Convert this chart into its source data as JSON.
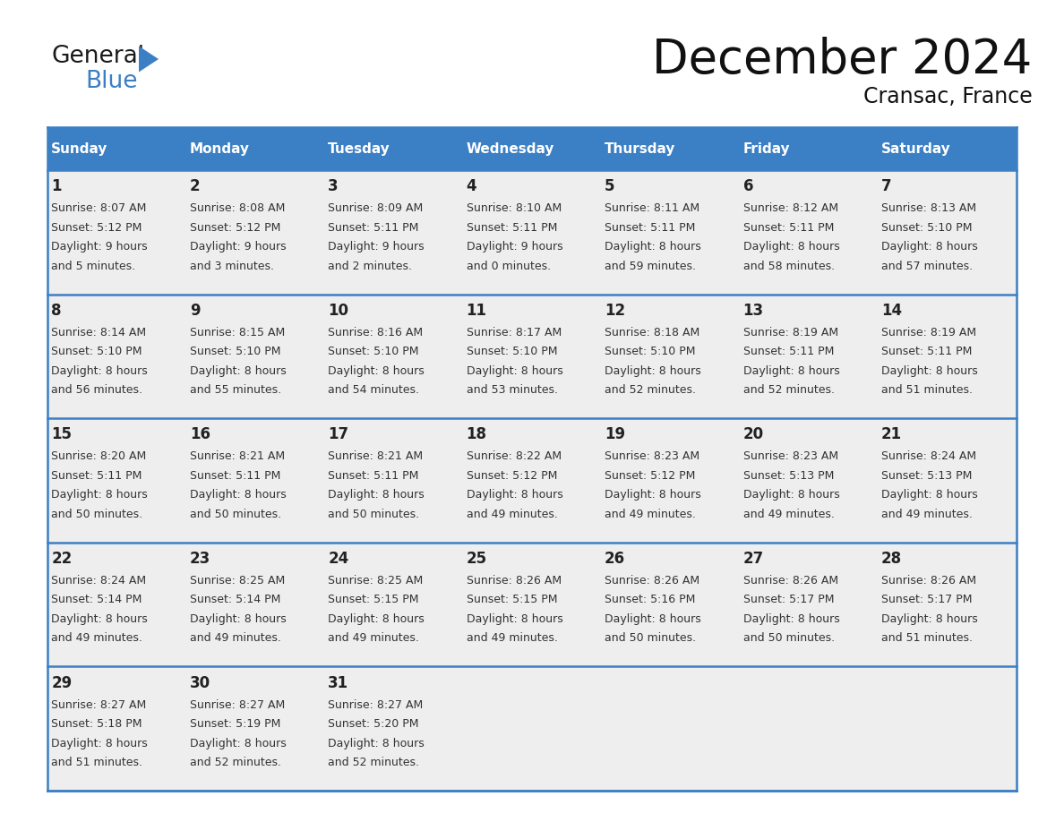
{
  "title": "December 2024",
  "subtitle": "Cransac, France",
  "header_bg_color": "#3b7fc4",
  "header_text_color": "#ffffff",
  "day_names": [
    "Sunday",
    "Monday",
    "Tuesday",
    "Wednesday",
    "Thursday",
    "Friday",
    "Saturday"
  ],
  "cell_bg_color": "#eeeeee",
  "border_color": "#3b7fc4",
  "title_color": "#111111",
  "subtitle_color": "#111111",
  "day_num_color": "#222222",
  "cell_text_color": "#333333",
  "calendar_data": [
    [
      {
        "day": "1",
        "sunrise": "8:07 AM",
        "sunset": "5:12 PM",
        "dl1": "9 hours",
        "dl2": "and 5 minutes."
      },
      {
        "day": "2",
        "sunrise": "8:08 AM",
        "sunset": "5:12 PM",
        "dl1": "9 hours",
        "dl2": "and 3 minutes."
      },
      {
        "day": "3",
        "sunrise": "8:09 AM",
        "sunset": "5:11 PM",
        "dl1": "9 hours",
        "dl2": "and 2 minutes."
      },
      {
        "day": "4",
        "sunrise": "8:10 AM",
        "sunset": "5:11 PM",
        "dl1": "9 hours",
        "dl2": "and 0 minutes."
      },
      {
        "day": "5",
        "sunrise": "8:11 AM",
        "sunset": "5:11 PM",
        "dl1": "8 hours",
        "dl2": "and 59 minutes."
      },
      {
        "day": "6",
        "sunrise": "8:12 AM",
        "sunset": "5:11 PM",
        "dl1": "8 hours",
        "dl2": "and 58 minutes."
      },
      {
        "day": "7",
        "sunrise": "8:13 AM",
        "sunset": "5:10 PM",
        "dl1": "8 hours",
        "dl2": "and 57 minutes."
      }
    ],
    [
      {
        "day": "8",
        "sunrise": "8:14 AM",
        "sunset": "5:10 PM",
        "dl1": "8 hours",
        "dl2": "and 56 minutes."
      },
      {
        "day": "9",
        "sunrise": "8:15 AM",
        "sunset": "5:10 PM",
        "dl1": "8 hours",
        "dl2": "and 55 minutes."
      },
      {
        "day": "10",
        "sunrise": "8:16 AM",
        "sunset": "5:10 PM",
        "dl1": "8 hours",
        "dl2": "and 54 minutes."
      },
      {
        "day": "11",
        "sunrise": "8:17 AM",
        "sunset": "5:10 PM",
        "dl1": "8 hours",
        "dl2": "and 53 minutes."
      },
      {
        "day": "12",
        "sunrise": "8:18 AM",
        "sunset": "5:10 PM",
        "dl1": "8 hours",
        "dl2": "and 52 minutes."
      },
      {
        "day": "13",
        "sunrise": "8:19 AM",
        "sunset": "5:11 PM",
        "dl1": "8 hours",
        "dl2": "and 52 minutes."
      },
      {
        "day": "14",
        "sunrise": "8:19 AM",
        "sunset": "5:11 PM",
        "dl1": "8 hours",
        "dl2": "and 51 minutes."
      }
    ],
    [
      {
        "day": "15",
        "sunrise": "8:20 AM",
        "sunset": "5:11 PM",
        "dl1": "8 hours",
        "dl2": "and 50 minutes."
      },
      {
        "day": "16",
        "sunrise": "8:21 AM",
        "sunset": "5:11 PM",
        "dl1": "8 hours",
        "dl2": "and 50 minutes."
      },
      {
        "day": "17",
        "sunrise": "8:21 AM",
        "sunset": "5:11 PM",
        "dl1": "8 hours",
        "dl2": "and 50 minutes."
      },
      {
        "day": "18",
        "sunrise": "8:22 AM",
        "sunset": "5:12 PM",
        "dl1": "8 hours",
        "dl2": "and 49 minutes."
      },
      {
        "day": "19",
        "sunrise": "8:23 AM",
        "sunset": "5:12 PM",
        "dl1": "8 hours",
        "dl2": "and 49 minutes."
      },
      {
        "day": "20",
        "sunrise": "8:23 AM",
        "sunset": "5:13 PM",
        "dl1": "8 hours",
        "dl2": "and 49 minutes."
      },
      {
        "day": "21",
        "sunrise": "8:24 AM",
        "sunset": "5:13 PM",
        "dl1": "8 hours",
        "dl2": "and 49 minutes."
      }
    ],
    [
      {
        "day": "22",
        "sunrise": "8:24 AM",
        "sunset": "5:14 PM",
        "dl1": "8 hours",
        "dl2": "and 49 minutes."
      },
      {
        "day": "23",
        "sunrise": "8:25 AM",
        "sunset": "5:14 PM",
        "dl1": "8 hours",
        "dl2": "and 49 minutes."
      },
      {
        "day": "24",
        "sunrise": "8:25 AM",
        "sunset": "5:15 PM",
        "dl1": "8 hours",
        "dl2": "and 49 minutes."
      },
      {
        "day": "25",
        "sunrise": "8:26 AM",
        "sunset": "5:15 PM",
        "dl1": "8 hours",
        "dl2": "and 49 minutes."
      },
      {
        "day": "26",
        "sunrise": "8:26 AM",
        "sunset": "5:16 PM",
        "dl1": "8 hours",
        "dl2": "and 50 minutes."
      },
      {
        "day": "27",
        "sunrise": "8:26 AM",
        "sunset": "5:17 PM",
        "dl1": "8 hours",
        "dl2": "and 50 minutes."
      },
      {
        "day": "28",
        "sunrise": "8:26 AM",
        "sunset": "5:17 PM",
        "dl1": "8 hours",
        "dl2": "and 51 minutes."
      }
    ],
    [
      {
        "day": "29",
        "sunrise": "8:27 AM",
        "sunset": "5:18 PM",
        "dl1": "8 hours",
        "dl2": "and 51 minutes."
      },
      {
        "day": "30",
        "sunrise": "8:27 AM",
        "sunset": "5:19 PM",
        "dl1": "8 hours",
        "dl2": "and 52 minutes."
      },
      {
        "day": "31",
        "sunrise": "8:27 AM",
        "sunset": "5:20 PM",
        "dl1": "8 hours",
        "dl2": "and 52 minutes."
      },
      null,
      null,
      null,
      null
    ]
  ]
}
